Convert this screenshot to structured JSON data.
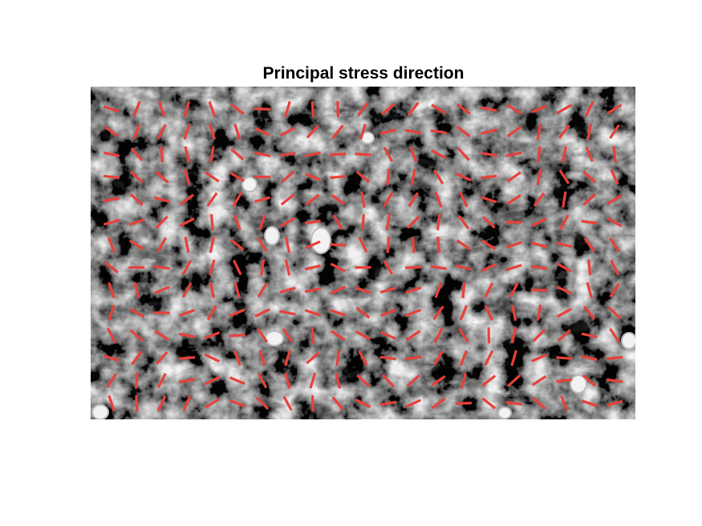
{
  "figure": {
    "title": "Principal stress direction"
  },
  "image": {
    "description_icon": "cell-monolayer-micrograph",
    "palette": [
      "#2b2b2b",
      "#6f6f6f",
      "#c8c8c8",
      "#f4f4f4"
    ]
  },
  "overlay": {
    "marker": "stress-direction-line",
    "color": "#e8403a",
    "grid_columns": 21,
    "grid_rows": 14
  }
}
